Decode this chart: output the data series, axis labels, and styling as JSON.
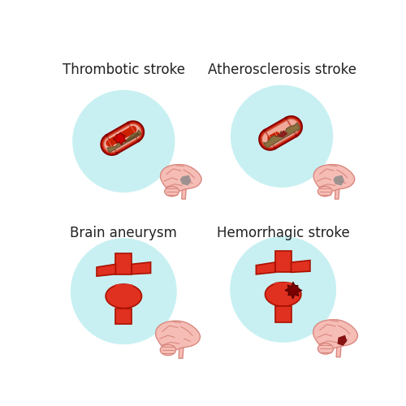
{
  "title_tl": "Thrombotic stroke",
  "title_tr": "Atherosclerosis stroke",
  "title_bl": "Brain aneurysm",
  "title_br": "Hemorrhagic stroke",
  "bg_color": "#ffffff",
  "circle_color": "#c8f0f2",
  "brain_color": "#f5bdb5",
  "brain_outline": "#d98880",
  "vessel_outer_red": "#d42000",
  "vessel_wall_pink": "#f0a898",
  "vessel_lumen_red": "#cc2200",
  "plaque_color": "#8B7040",
  "plaque_dark": "#6B5030",
  "thrombus_color": "#cc0000",
  "infarct_color": "#888888",
  "aneurysm_red": "#e03020",
  "aneurysm_outline": "#aa1100",
  "hemorrhage_color": "#7B0000",
  "font_size": 12,
  "title_color": "#222222"
}
